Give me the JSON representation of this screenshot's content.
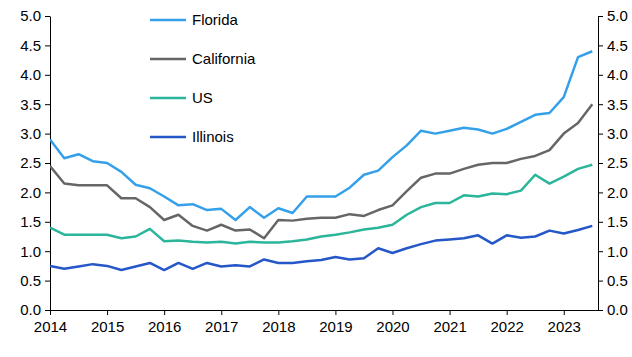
{
  "chart_data": {
    "type": "line",
    "x": [
      2014,
      2014.25,
      2014.5,
      2014.75,
      2015,
      2015.25,
      2015.5,
      2015.75,
      2016,
      2016.25,
      2016.5,
      2016.75,
      2017,
      2017.25,
      2017.5,
      2017.75,
      2018,
      2018.25,
      2018.5,
      2018.75,
      2019,
      2019.25,
      2019.5,
      2019.75,
      2020,
      2020.25,
      2020.5,
      2020.75,
      2021,
      2021.25,
      2021.5,
      2021.75,
      2022,
      2022.25,
      2022.5,
      2022.75,
      2023,
      2023.25,
      2023.5
    ],
    "series": [
      {
        "name": "Florida",
        "color": "#35a0ea",
        "values": [
          2.9,
          2.58,
          2.65,
          2.53,
          2.5,
          2.35,
          2.13,
          2.07,
          1.93,
          1.78,
          1.8,
          1.7,
          1.72,
          1.53,
          1.75,
          1.57,
          1.73,
          1.65,
          1.93,
          1.93,
          1.93,
          2.08,
          2.3,
          2.37,
          2.6,
          2.8,
          3.05,
          3.0,
          3.05,
          3.1,
          3.07,
          3.0,
          3.08,
          3.2,
          3.32,
          3.35,
          3.62,
          4.3,
          4.4
        ]
      },
      {
        "name": "California",
        "color": "#666666",
        "values": [
          2.45,
          2.15,
          2.12,
          2.12,
          2.12,
          1.9,
          1.9,
          1.75,
          1.53,
          1.62,
          1.43,
          1.35,
          1.45,
          1.35,
          1.37,
          1.22,
          1.53,
          1.52,
          1.55,
          1.57,
          1.57,
          1.63,
          1.6,
          1.7,
          1.78,
          2.02,
          2.25,
          2.32,
          2.32,
          2.4,
          2.47,
          2.5,
          2.5,
          2.57,
          2.62,
          2.72,
          3.0,
          3.18,
          3.5
        ]
      },
      {
        "name": "US",
        "color": "#2bb59a",
        "values": [
          1.4,
          1.28,
          1.28,
          1.28,
          1.28,
          1.22,
          1.25,
          1.38,
          1.17,
          1.18,
          1.16,
          1.15,
          1.16,
          1.13,
          1.16,
          1.15,
          1.15,
          1.17,
          1.2,
          1.25,
          1.28,
          1.32,
          1.37,
          1.4,
          1.45,
          1.62,
          1.75,
          1.82,
          1.82,
          1.95,
          1.93,
          1.98,
          1.97,
          2.03,
          2.3,
          2.15,
          2.27,
          2.4,
          2.47
        ]
      },
      {
        "name": "Illinois",
        "color": "#2557c8",
        "values": [
          0.75,
          0.7,
          0.74,
          0.78,
          0.75,
          0.68,
          0.74,
          0.8,
          0.68,
          0.8,
          0.7,
          0.8,
          0.74,
          0.76,
          0.74,
          0.86,
          0.8,
          0.8,
          0.83,
          0.85,
          0.9,
          0.86,
          0.88,
          1.05,
          0.97,
          1.05,
          1.12,
          1.18,
          1.2,
          1.22,
          1.27,
          1.13,
          1.27,
          1.23,
          1.25,
          1.35,
          1.3,
          1.36,
          1.43
        ]
      }
    ],
    "xlim": [
      2014,
      2023.6
    ],
    "xticks": [
      2014,
      2015,
      2016,
      2017,
      2018,
      2019,
      2020,
      2021,
      2022,
      2023
    ],
    "ylim": [
      0,
      5
    ],
    "yticks": [
      {
        "value": 0,
        "label": "0.0"
      },
      {
        "value": 0.5,
        "label": "0.5"
      },
      {
        "value": 1,
        "label": "1.0"
      },
      {
        "value": 1.5,
        "label": "1.5"
      },
      {
        "value": 2,
        "label": "2.0"
      },
      {
        "value": 2.5,
        "label": "2.5"
      },
      {
        "value": 3,
        "label": "3.0"
      },
      {
        "value": 3.5,
        "label": "3.5"
      },
      {
        "value": 4,
        "label": "4.0"
      },
      {
        "value": 4.5,
        "label": "4.5"
      },
      {
        "value": 5,
        "label": "5.0"
      }
    ],
    "y2lim": [
      0,
      5
    ],
    "y2ticks": [
      {
        "value": 0,
        "label": "0.0"
      },
      {
        "value": 0.5,
        "label": "0.5"
      },
      {
        "value": 1,
        "label": "1.0"
      },
      {
        "value": 1.5,
        "label": "1.5"
      },
      {
        "value": 2,
        "label": "2.0"
      },
      {
        "value": 2.5,
        "label": "2.5"
      },
      {
        "value": 3,
        "label": "3.0"
      },
      {
        "value": 3.5,
        "label": "3.5"
      },
      {
        "value": 4,
        "label": "4.0"
      },
      {
        "value": 4.5,
        "label": "4.5"
      },
      {
        "value": 5,
        "label": "5.0"
      }
    ],
    "grid": false,
    "legend": "upper left"
  }
}
